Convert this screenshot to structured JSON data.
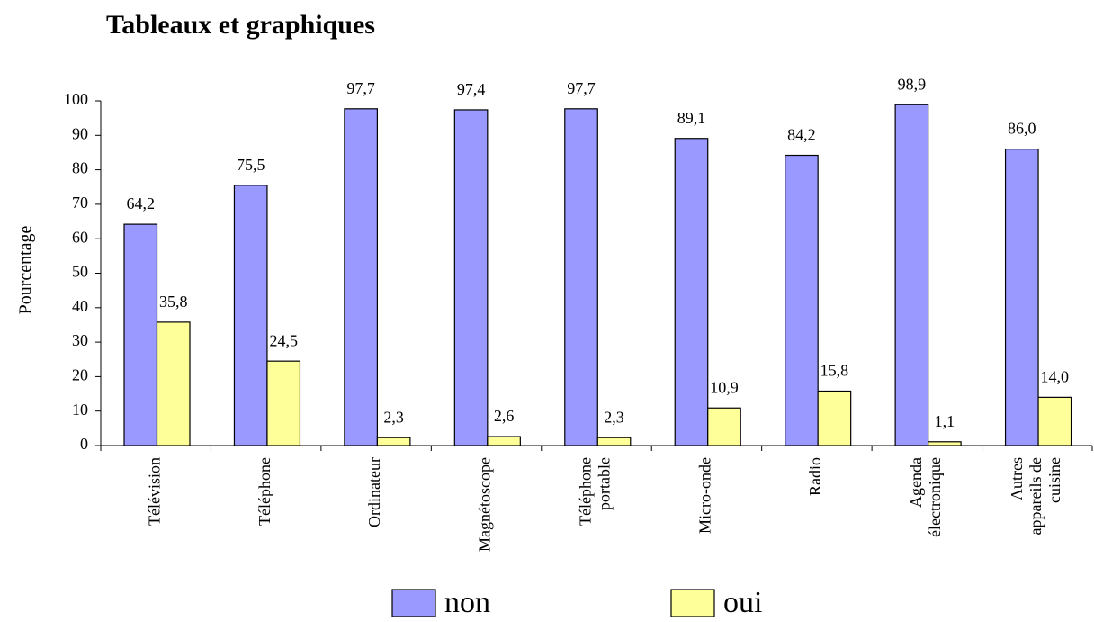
{
  "chart_data": {
    "type": "bar",
    "title": "Tableaux et graphiques",
    "y_label": "Pourcentage",
    "categories": [
      [
        "Télévision"
      ],
      [
        "Téléphone"
      ],
      [
        "Ordinateur"
      ],
      [
        "Magnétoscope"
      ],
      [
        "Téléphone",
        "portable"
      ],
      [
        "Micro-onde"
      ],
      [
        "Radio"
      ],
      [
        "Agenda",
        "électronique"
      ],
      [
        "Autres",
        "appareils de",
        "cuisine"
      ]
    ],
    "series": [
      {
        "name": "non",
        "color": "#9999ff",
        "values": [
          64.2,
          75.5,
          97.7,
          97.4,
          97.7,
          89.1,
          84.2,
          98.9,
          86.0
        ],
        "value_labels": [
          "64,2",
          "75,5",
          "97,7",
          "97,4",
          "97,7",
          "89,1",
          "84,2",
          "98,9",
          "86,0"
        ]
      },
      {
        "name": "oui",
        "color": "#ffff99",
        "values": [
          35.8,
          24.5,
          2.3,
          2.6,
          2.3,
          10.9,
          15.8,
          1.1,
          14.0
        ],
        "value_labels": [
          "35,8",
          "24,5",
          "2,3",
          "2,6",
          "2,3",
          "10,9",
          "15,8",
          "1,1",
          "14,0"
        ]
      }
    ],
    "ylim": [
      0,
      100
    ],
    "yticks": [
      0,
      10,
      20,
      30,
      40,
      50,
      60,
      70,
      80,
      90,
      100
    ],
    "grid": false,
    "legend": "bottom"
  }
}
